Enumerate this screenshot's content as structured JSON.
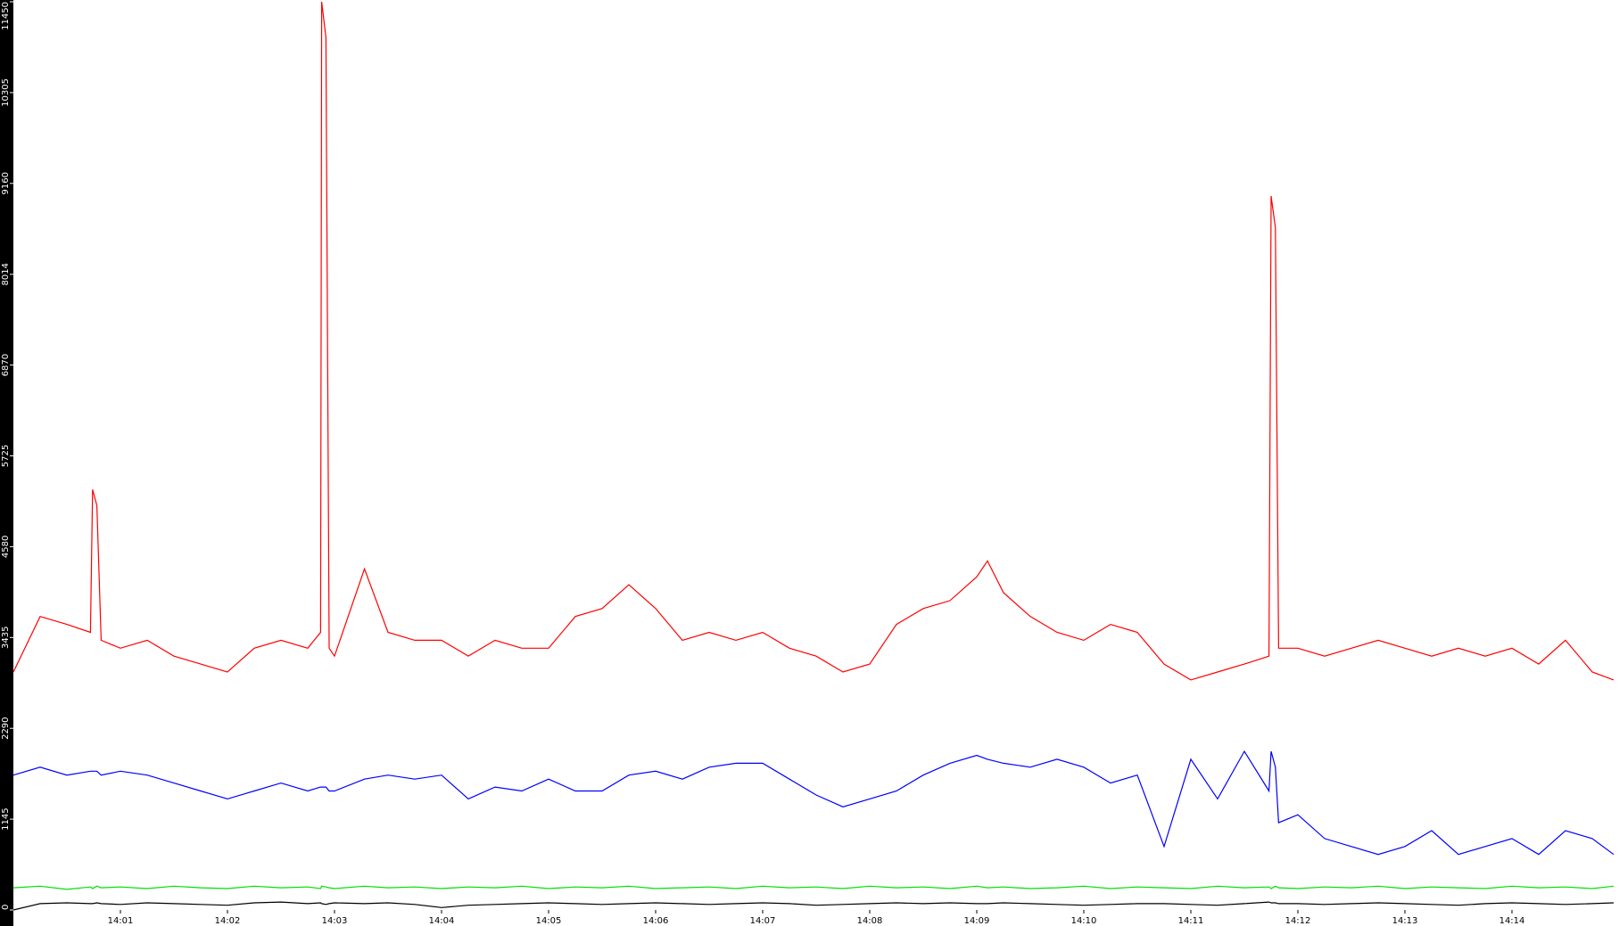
{
  "chart_data": {
    "type": "line",
    "x": [
      0,
      0.25,
      0.5,
      0.72,
      0.74,
      0.78,
      0.82,
      1.0,
      1.25,
      1.5,
      1.75,
      2.0,
      2.25,
      2.5,
      2.75,
      2.87,
      2.88,
      2.92,
      2.95,
      3.0,
      3.28,
      3.5,
      3.75,
      4.0,
      4.25,
      4.5,
      4.75,
      5.0,
      5.25,
      5.5,
      5.75,
      6.0,
      6.25,
      6.5,
      6.75,
      7.0,
      7.25,
      7.5,
      7.75,
      8.0,
      8.25,
      8.5,
      8.75,
      9.0,
      9.1,
      9.25,
      9.5,
      9.75,
      10.0,
      10.25,
      10.5,
      10.75,
      11.0,
      11.25,
      11.5,
      11.73,
      11.75,
      11.79,
      11.82,
      12.0,
      12.25,
      12.5,
      12.75,
      13.0,
      13.25,
      13.5,
      13.75,
      14.0,
      14.25,
      14.5,
      14.75,
      14.95
    ],
    "xlim": [
      0,
      15
    ],
    "xticks": [
      {
        "value": 1,
        "label": "14:01"
      },
      {
        "value": 2,
        "label": "14:02"
      },
      {
        "value": 3,
        "label": "14:03"
      },
      {
        "value": 4,
        "label": "14:04"
      },
      {
        "value": 5,
        "label": "14:05"
      },
      {
        "value": 6,
        "label": "14:06"
      },
      {
        "value": 7,
        "label": "14:07"
      },
      {
        "value": 8,
        "label": "14:08"
      },
      {
        "value": 9,
        "label": "14:09"
      },
      {
        "value": 10,
        "label": "14:10"
      },
      {
        "value": 11,
        "label": "14:11"
      },
      {
        "value": 12,
        "label": "14:12"
      },
      {
        "value": 13,
        "label": "14:13"
      },
      {
        "value": 14,
        "label": "14:14"
      }
    ],
    "ylim": [
      0,
      11450
    ],
    "yticks": [
      0,
      1145,
      2290,
      3435,
      4580,
      5725,
      6870,
      8014,
      9160,
      10305,
      11450
    ],
    "series": [
      {
        "color": "#ff0000",
        "values": [
          3000,
          3700,
          3600,
          3500,
          5300,
          5100,
          3400,
          3300,
          3400,
          3200,
          3100,
          3000,
          3300,
          3400,
          3300,
          3500,
          11450,
          11000,
          3300,
          3200,
          4300,
          3500,
          3400,
          3400,
          3200,
          3400,
          3300,
          3300,
          3700,
          3800,
          4100,
          3800,
          3400,
          3500,
          3400,
          3500,
          3300,
          3200,
          3000,
          3100,
          3600,
          3800,
          3900,
          4200,
          4400,
          4000,
          3700,
          3500,
          3400,
          3600,
          3500,
          3100,
          2900,
          3000,
          3100,
          3200,
          9000,
          8600,
          3300,
          3300,
          3200,
          3300,
          3400,
          3300,
          3200,
          3300,
          3200,
          3300,
          3100,
          3400,
          3000,
          2900
        ]
      },
      {
        "color": "#0000ff",
        "values": [
          1700,
          1800,
          1700,
          1750,
          1750,
          1750,
          1700,
          1750,
          1700,
          1600,
          1500,
          1400,
          1500,
          1600,
          1500,
          1550,
          1550,
          1550,
          1500,
          1500,
          1650,
          1700,
          1650,
          1700,
          1400,
          1550,
          1500,
          1650,
          1500,
          1500,
          1700,
          1750,
          1650,
          1800,
          1850,
          1850,
          1650,
          1450,
          1300,
          1400,
          1500,
          1700,
          1850,
          1950,
          1900,
          1850,
          1800,
          1900,
          1800,
          1600,
          1700,
          800,
          1900,
          1400,
          2000,
          1500,
          2000,
          1800,
          1100,
          1200,
          900,
          800,
          700,
          800,
          1000,
          700,
          800,
          900,
          700,
          1000,
          900,
          700
        ]
      },
      {
        "color": "#00e000",
        "values": [
          280,
          300,
          260,
          290,
          270,
          300,
          280,
          290,
          270,
          300,
          280,
          270,
          300,
          280,
          290,
          270,
          300,
          290,
          280,
          270,
          300,
          280,
          290,
          270,
          290,
          280,
          300,
          270,
          290,
          280,
          300,
          270,
          280,
          290,
          270,
          300,
          280,
          290,
          270,
          300,
          280,
          290,
          270,
          300,
          280,
          290,
          270,
          280,
          300,
          270,
          290,
          280,
          270,
          300,
          280,
          290,
          270,
          300,
          280,
          270,
          290,
          280,
          300,
          270,
          290,
          280,
          270,
          300,
          280,
          290,
          270,
          300
        ]
      },
      {
        "color": "#000000",
        "values": [
          0,
          80,
          90,
          80,
          80,
          90,
          80,
          70,
          90,
          80,
          70,
          60,
          90,
          100,
          80,
          90,
          80,
          70,
          80,
          90,
          80,
          90,
          70,
          30,
          60,
          70,
          80,
          90,
          80,
          70,
          80,
          90,
          80,
          70,
          80,
          90,
          80,
          60,
          70,
          80,
          90,
          80,
          90,
          80,
          80,
          90,
          80,
          70,
          60,
          70,
          80,
          80,
          70,
          60,
          80,
          100,
          90,
          90,
          80,
          80,
          70,
          80,
          90,
          80,
          70,
          60,
          80,
          90,
          80,
          70,
          80,
          90
        ]
      }
    ]
  }
}
